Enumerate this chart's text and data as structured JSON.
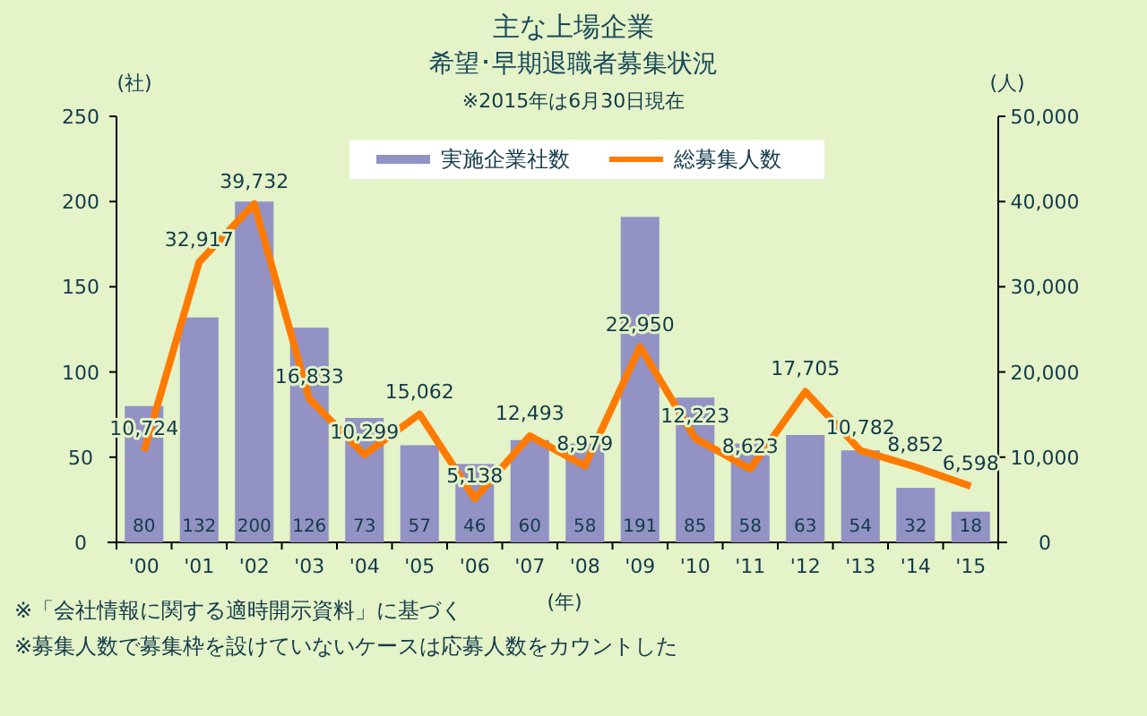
{
  "chart_data": {
    "type": "bar",
    "title": "主な上場企業",
    "subtitle": "希望･早期退職者募集状況",
    "annotations": [
      "※2015年は6月30日現在",
      "※「会社情報に関する適時開示資料」に基づく",
      "※募集人数で募集枠を設けていないケースは応募人数をカウントした"
    ],
    "xlabel": "(年)",
    "ylabel": "(社)",
    "y2label": "(人)",
    "categories": [
      "'00",
      "'01",
      "'02",
      "'03",
      "'04",
      "'05",
      "'06",
      "'07",
      "'08",
      "'09",
      "'10",
      "'11",
      "'12",
      "'13",
      "'14",
      "'15"
    ],
    "series": [
      {
        "name": "実施企業社数",
        "color": "#9292c4",
        "values": [
          80,
          132,
          200,
          126,
          73,
          57,
          46,
          60,
          58,
          191,
          85,
          58,
          63,
          54,
          32,
          18
        ]
      },
      {
        "name": "総募集人数",
        "type": "line",
        "axis": "y2",
        "color": "#ff7a00",
        "values": [
          10724,
          32917,
          39732,
          16833,
          10299,
          15062,
          5138,
          12493,
          8979,
          22950,
          12223,
          8623,
          17705,
          10782,
          8852,
          6598
        ],
        "value_labels": [
          "10,724",
          "32,917",
          "39,732",
          "16,833",
          "10,299",
          "15,062",
          "5,138",
          "12,493",
          "8,979",
          "22,950",
          "12,223",
          "8,623",
          "17,705",
          "10,782",
          "8,852",
          "6,598"
        ]
      }
    ],
    "ylim": [
      0,
      250
    ],
    "yticks": [
      0,
      50,
      100,
      150,
      200,
      250
    ],
    "y2lim": [
      0,
      50000
    ],
    "y2ticks": [
      0,
      {
        "value": 10000,
        "label": "10,000"
      },
      {
        "value": 20000,
        "label": "20,000"
      },
      {
        "value": 30000,
        "label": "30,000"
      },
      {
        "value": 40000,
        "label": "40,000"
      },
      {
        "value": 50000,
        "label": "50,000"
      }
    ],
    "data_labels": true,
    "legend": "top"
  }
}
